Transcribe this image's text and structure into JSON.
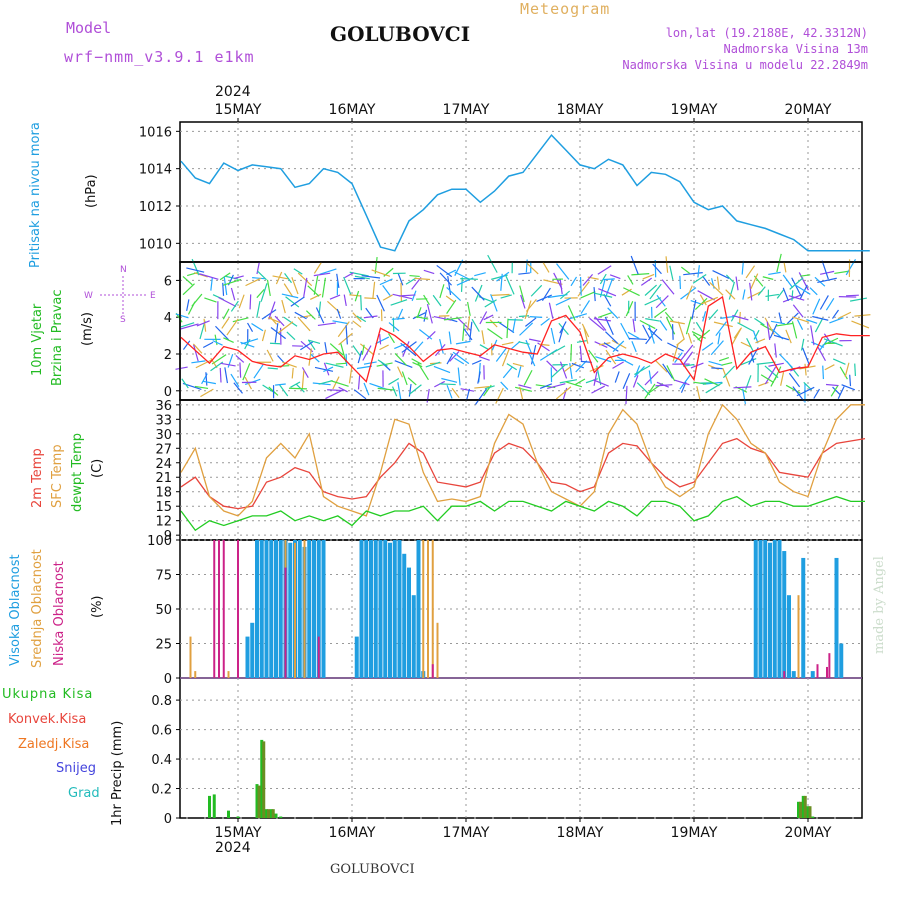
{
  "header": {
    "model_label": "Model",
    "model_name": "wrf−nmm_v3.9.1  e1km",
    "city": "GOLUBOVCI",
    "meteogram": "Meteogram",
    "lonlat": "lon,lat (19.2188E, 42.3312N)",
    "elevation": "Nadmorska Visina 13m",
    "elevation_model": "Nadmorska Visina u modelu 22.2849m",
    "year": "2024",
    "days": [
      "15MAY",
      "16MAY",
      "17MAY",
      "18MAY",
      "19MAY",
      "20MAY"
    ],
    "footer_city": "GOLUBOVCI",
    "watermark": "made by Angel"
  },
  "labels": {
    "pressure": "Pritisak na nivou mora",
    "pressure_unit": "(hPa)",
    "wind1": "10m Vjetar",
    "wind2": "Brzina i Pravac",
    "wind_unit": "(m/s)",
    "compass_n": "N",
    "compass_s": "S",
    "compass_w": "W",
    "compass_e": "E",
    "temp1": "2m Temp",
    "temp2": "SFC Temp",
    "temp3": "dewpt Temp",
    "temp_unit": "(C)",
    "cloud1": "Visoka Oblacnost",
    "cloud2": "Srednja Oblacnost",
    "cloud3": "Niska Oblacnost",
    "cloud_unit": "(%)",
    "precip1": "Ukupna Kisa",
    "precip2": "Konvek.Kisa",
    "precip3": "Zaledj.Kisa",
    "precip4": "Snijeg",
    "precip5": "Grad",
    "precip_unit": "1hr Precip (mm)"
  },
  "colors": {
    "pressure": "#1f9ee0",
    "temp2m": "#e8453c",
    "sfc": "#e0a040",
    "dewpt": "#22cc22",
    "high_cloud": "#1f9ee0",
    "mid_cloud": "#e0a040",
    "low_cloud": "#cc2288",
    "total_rain": "#22bb22",
    "conv_rain": "#e8453c",
    "freezing": "#ee7722",
    "snow": "#4444dd",
    "hail": "#22bbbb",
    "wind_speed": "#ff2222"
  },
  "chart_data": [
    {
      "type": "line",
      "name": "pressure",
      "ylabel": "Pritisak na nivou mora (hPa)",
      "ylim": [
        1009,
        1016.5
      ],
      "yticks": [
        1010,
        1012,
        1014,
        1016
      ],
      "x_hours": [
        0,
        3,
        6,
        9,
        12,
        15,
        18,
        21,
        24,
        27,
        30,
        33,
        36,
        39,
        42,
        45,
        48,
        51,
        54,
        57,
        60,
        63,
        66,
        69,
        72,
        75,
        78,
        81,
        84,
        87,
        90,
        93,
        96,
        99,
        102,
        105,
        108,
        111,
        114,
        117,
        120,
        123,
        126,
        129,
        132,
        135,
        138,
        141,
        144,
        145
      ],
      "values": [
        1014.4,
        1013.5,
        1013.2,
        1014.3,
        1013.9,
        1014.2,
        1014.1,
        1014.0,
        1013.0,
        1013.2,
        1014.0,
        1013.8,
        1013.2,
        1011.5,
        1009.8,
        1009.6,
        1011.2,
        1011.8,
        1012.6,
        1012.9,
        1012.9,
        1012.2,
        1012.8,
        1013.6,
        1013.8,
        1014.8,
        1015.8,
        1015.0,
        1014.2,
        1014.0,
        1014.5,
        1014.2,
        1013.1,
        1013.8,
        1013.7,
        1013.3,
        1012.2,
        1011.8,
        1012.0,
        1011.2,
        1011.0,
        1010.8,
        1010.5,
        1010.2,
        1009.6,
        1009.6,
        1009.6,
        1009.6,
        1009.6,
        1009.6
      ]
    },
    {
      "type": "line",
      "name": "wind",
      "ylabel": "10m Vjetar Brzina i Pravac (m/s)",
      "ylim": [
        -0.5,
        7
      ],
      "yticks": [
        0,
        2,
        4,
        6
      ],
      "x_hours": [
        0,
        3,
        6,
        9,
        12,
        15,
        18,
        21,
        24,
        27,
        30,
        33,
        36,
        39,
        42,
        45,
        48,
        51,
        54,
        57,
        60,
        63,
        66,
        69,
        72,
        75,
        78,
        81,
        84,
        87,
        90,
        93,
        96,
        99,
        102,
        105,
        108,
        111,
        114,
        117,
        120,
        123,
        126,
        129,
        132,
        135,
        138,
        141,
        144,
        145
      ],
      "values": [
        2.9,
        2.2,
        1.5,
        2.4,
        2.2,
        1.6,
        1.4,
        1.3,
        1.9,
        1.7,
        2.0,
        2.1,
        1.3,
        0.5,
        3.4,
        3.0,
        2.4,
        1.6,
        2.2,
        2.3,
        2.1,
        1.9,
        2.5,
        2.3,
        2.1,
        2.0,
        3.8,
        4.1,
        3.2,
        1.0,
        1.8,
        2.0,
        1.8,
        1.5,
        2.0,
        1.7,
        0.6,
        4.6,
        5.1,
        1.2,
        2.1,
        2.4,
        1.0,
        1.2,
        1.3,
        2.9,
        3.1,
        3.0,
        3.0,
        3.0
      ]
    },
    {
      "type": "line",
      "name": "temperature",
      "ylabel": "(C)",
      "ylim": [
        8,
        37
      ],
      "yticks": [
        9,
        12,
        15,
        18,
        21,
        24,
        27,
        30,
        33,
        36
      ],
      "series": [
        {
          "name": "2m Temp",
          "x_hours": [
            0,
            3,
            6,
            9,
            12,
            15,
            18,
            21,
            24,
            27,
            30,
            33,
            36,
            39,
            42,
            45,
            48,
            51,
            54,
            57,
            60,
            63,
            66,
            69,
            72,
            75,
            78,
            81,
            84,
            87,
            90,
            93,
            96,
            99,
            102,
            105,
            108,
            111,
            114,
            117,
            120,
            123,
            126,
            129,
            132,
            135,
            138,
            141,
            144
          ],
          "values": [
            19,
            21,
            17,
            15,
            14.5,
            15,
            20,
            21,
            23,
            22,
            18,
            17,
            16.5,
            17,
            21,
            24,
            28,
            26,
            20,
            19.5,
            19,
            20,
            26,
            28,
            27,
            24,
            20,
            19.5,
            18,
            19,
            26,
            28,
            27.5,
            24,
            21,
            19,
            20,
            24,
            28,
            29,
            27,
            26,
            22,
            21.5,
            21,
            26,
            28,
            28.5,
            29
          ]
        },
        {
          "name": "SFC Temp",
          "x_hours": [
            0,
            3,
            6,
            9,
            12,
            15,
            18,
            21,
            24,
            27,
            30,
            33,
            36,
            39,
            42,
            45,
            48,
            51,
            54,
            57,
            60,
            63,
            66,
            69,
            72,
            75,
            78,
            81,
            84,
            87,
            90,
            93,
            96,
            99,
            102,
            105,
            108,
            111,
            114,
            117,
            120,
            123,
            126,
            129,
            132,
            135,
            138,
            141,
            144
          ],
          "values": [
            22,
            27,
            17,
            14,
            13,
            16,
            25,
            28,
            25,
            30,
            17,
            15,
            14,
            13,
            22,
            33,
            32,
            22,
            16,
            16.5,
            16,
            17,
            28,
            34,
            32,
            24,
            18,
            16.5,
            15,
            18,
            30,
            35,
            32,
            24,
            19,
            17,
            19,
            30,
            36,
            33,
            28,
            26,
            20,
            18,
            17,
            26,
            33,
            36,
            36
          ]
        },
        {
          "name": "dewpt Temp",
          "x_hours": [
            0,
            3,
            6,
            9,
            12,
            15,
            18,
            21,
            24,
            27,
            30,
            33,
            36,
            39,
            42,
            45,
            48,
            51,
            54,
            57,
            60,
            63,
            66,
            69,
            72,
            75,
            78,
            81,
            84,
            87,
            90,
            93,
            96,
            99,
            102,
            105,
            108,
            111,
            114,
            117,
            120,
            123,
            126,
            129,
            132,
            135,
            138,
            141,
            144
          ],
          "values": [
            14,
            10,
            12,
            11,
            12,
            13,
            13,
            14,
            12,
            13,
            12,
            13,
            11,
            14,
            13,
            14,
            14,
            15,
            12,
            15,
            15,
            16,
            14,
            16,
            16,
            15,
            14,
            16,
            15,
            14,
            16,
            15,
            13,
            16,
            16,
            15,
            12,
            13,
            16,
            17,
            15,
            16,
            16,
            15,
            15,
            16,
            17,
            16,
            16
          ]
        }
      ]
    },
    {
      "type": "bar",
      "name": "clouds",
      "ylabel": "(%)",
      "ylim": [
        0,
        100
      ],
      "yticks": [
        0,
        25,
        50,
        75,
        100
      ],
      "series": [
        {
          "name": "Visoka Oblacnost",
          "x_hours": [
            14,
            15,
            16,
            17,
            18,
            19,
            20,
            21,
            22,
            23,
            24,
            25,
            26,
            27,
            28,
            29,
            30,
            37,
            38,
            39,
            40,
            41,
            42,
            43,
            44,
            45,
            46,
            47,
            48,
            49,
            50,
            51,
            121,
            122,
            123,
            124,
            125,
            126,
            127,
            128,
            129,
            131,
            133,
            138,
            139
          ],
          "values": [
            30,
            40,
            100,
            100,
            100,
            100,
            100,
            100,
            100,
            98,
            100,
            100,
            95,
            100,
            100,
            100,
            100,
            30,
            100,
            100,
            100,
            100,
            100,
            100,
            98,
            100,
            100,
            90,
            80,
            60,
            100,
            5,
            100,
            100,
            100,
            98,
            100,
            100,
            92,
            60,
            5,
            87,
            5,
            87,
            25
          ]
        },
        {
          "name": "Srednja Oblacnost",
          "x_hours": [
            2,
            3,
            10,
            22,
            24,
            26,
            51,
            52,
            53,
            54,
            130
          ],
          "values": [
            30,
            5,
            5,
            100,
            98,
            100,
            100,
            100,
            100,
            40,
            60
          ]
        },
        {
          "name": "Niska Oblacnost",
          "x_hours": [
            7,
            8,
            9,
            12,
            22,
            29,
            53,
            127,
            134,
            136,
            136.5
          ],
          "values": [
            100,
            100,
            100,
            100,
            80,
            30,
            10,
            5,
            10,
            8,
            18
          ]
        }
      ]
    },
    {
      "type": "bar",
      "name": "precipitation",
      "ylabel": "1hr Precip (mm)",
      "ylim": [
        0,
        0.95
      ],
      "yticks": [
        0,
        0.2,
        0.4,
        0.6,
        0.8
      ],
      "series": [
        {
          "name": "Ukupna Kisa",
          "x_hours": [
            6,
            7,
            10,
            12,
            16,
            17,
            18,
            19,
            20,
            21,
            130,
            131,
            132,
            133
          ],
          "values": [
            0.15,
            0.16,
            0.05,
            0.01,
            0.23,
            0.53,
            0.06,
            0.06,
            0.03,
            0.01,
            0.11,
            0.15,
            0.08,
            0.01
          ]
        },
        {
          "name": "Konvek.Kisa",
          "x_hours": [
            16,
            17,
            18,
            19,
            130,
            131,
            132
          ],
          "values": [
            0.22,
            0.52,
            0.06,
            0.06,
            0.11,
            0.15,
            0.08
          ]
        }
      ]
    }
  ]
}
